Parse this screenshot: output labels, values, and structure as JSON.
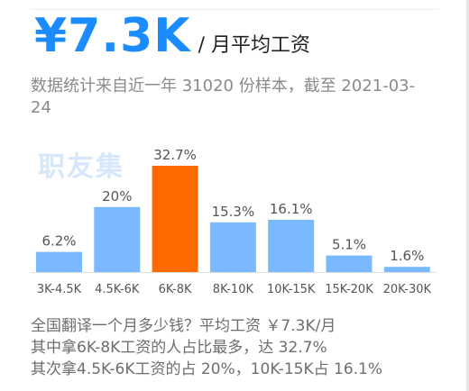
{
  "header": {
    "salary_value": "¥7.3K",
    "salary_unit": "/ 月平均工资",
    "stats_note": "数据统计来自近一年 31020 份样本，截至 2021-03-24"
  },
  "watermark": "职友集",
  "chart_data": {
    "type": "bar",
    "categories": [
      "3K-4.5K",
      "4.5K-6K",
      "6K-8K",
      "8K-10K",
      "10K-15K",
      "15K-20K",
      "20K-30K"
    ],
    "values": [
      6.2,
      20,
      32.7,
      15.3,
      16.1,
      5.1,
      1.6
    ],
    "value_labels": [
      "6.2%",
      "20%",
      "32.7%",
      "15.3%",
      "16.1%",
      "5.1%",
      "1.6%"
    ],
    "unit": "%",
    "highlight_index": 2,
    "colors": {
      "bar": "#7ab8ff",
      "highlight": "#ff6a00",
      "label": "#555555",
      "axis": "#e0e0e0"
    },
    "ylim": [
      0,
      32.7
    ],
    "grid": false
  },
  "summary": {
    "line1": "全国翻译一个月多少钱？平均工资 ￥7.3K/月",
    "line2": "其中拿6K-8K工资的人占比最多，达 32.7%",
    "line3": "其次拿4.5K-6K工资的占 20%，10K-15K占 16.1%"
  }
}
